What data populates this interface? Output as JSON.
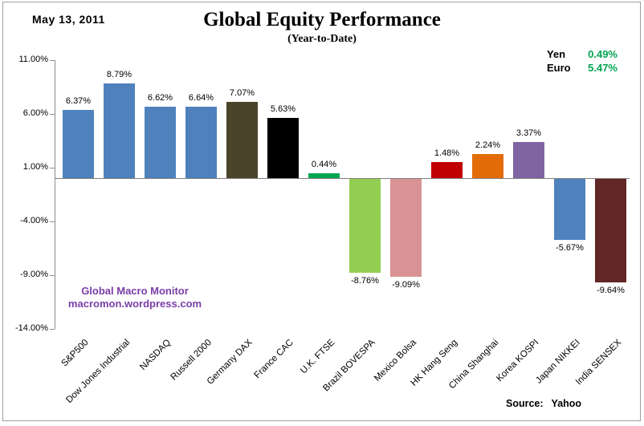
{
  "header": {
    "date": "May 13,  2011",
    "title": "Global Equity Performance",
    "subtitle": "(Year-to-Date)"
  },
  "currency_legend": {
    "items": [
      {
        "label": "Yen",
        "value": "0.49%"
      },
      {
        "label": "Euro",
        "value": "5.47%"
      }
    ],
    "value_color": "#00A550"
  },
  "watermark": {
    "line1": "Global Macro Monitor",
    "line2": "macromon.wordpress.com",
    "color": "#7A3DA8"
  },
  "source": {
    "label": "Source:",
    "value": "Yahoo"
  },
  "chart_data": {
    "type": "bar",
    "title": "Global Equity Performance",
    "subtitle": "(Year-to-Date)",
    "xlabel": "",
    "ylabel": "",
    "grid": false,
    "legend_position": "none",
    "ylim": [
      -14,
      11
    ],
    "categories": [
      "S&P500",
      "Dow Jones Industrial",
      "NASDAQ",
      "Russell 2000",
      "Germany DAX",
      "France CAC",
      "U.K. FTSE",
      "Brazil BOVESPA",
      "Mexico Bolsa",
      "HK  Hang Seng",
      "China Shanghai",
      "Korea KOSPI",
      "Japan NIKKEI",
      "India SENSEX"
    ],
    "values": [
      6.37,
      8.79,
      6.62,
      6.64,
      7.07,
      5.63,
      0.44,
      -8.76,
      -9.09,
      1.48,
      2.24,
      3.37,
      -5.67,
      -9.64
    ],
    "value_labels": [
      "6.37%",
      "8.79%",
      "6.62%",
      "6.64%",
      "7.07%",
      "5.63%",
      "0.44%",
      "-8.76%",
      "-9.09%",
      "1.48%",
      "2.24%",
      "3.37%",
      "-5.67%",
      "-9.64%"
    ],
    "bar_colors": [
      "#4F81BD",
      "#4F81BD",
      "#4F81BD",
      "#4F81BD",
      "#4A442B",
      "#000000",
      "#00A550",
      "#92CE50",
      "#D99394",
      "#C00000",
      "#E36C09",
      "#8064A2",
      "#4F81BD",
      "#612626"
    ],
    "y_ticks": [
      {
        "label": "11.00%",
        "value": 11
      },
      {
        "label": "6.00%",
        "value": 6
      },
      {
        "label": "1.00%",
        "value": 1
      },
      {
        "label": "-4.00%",
        "value": -4
      },
      {
        "label": "-9.00%",
        "value": -9
      },
      {
        "label": "-14.00%",
        "value": -14
      }
    ],
    "axis_color": "#8c8c8c",
    "baseline_color": "#7F7F7F"
  }
}
